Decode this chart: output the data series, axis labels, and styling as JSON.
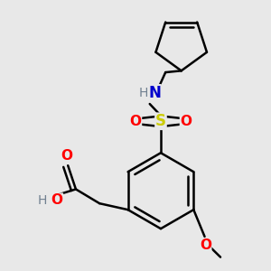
{
  "bg_color": "#e8e8e8",
  "line_color": "#000000",
  "bond_width": 1.8,
  "colors": {
    "O": "#ff0000",
    "N": "#0000cc",
    "S": "#cccc00",
    "H_label": "#708090",
    "C": "#000000"
  },
  "figsize": [
    3.0,
    3.0
  ],
  "dpi": 100
}
